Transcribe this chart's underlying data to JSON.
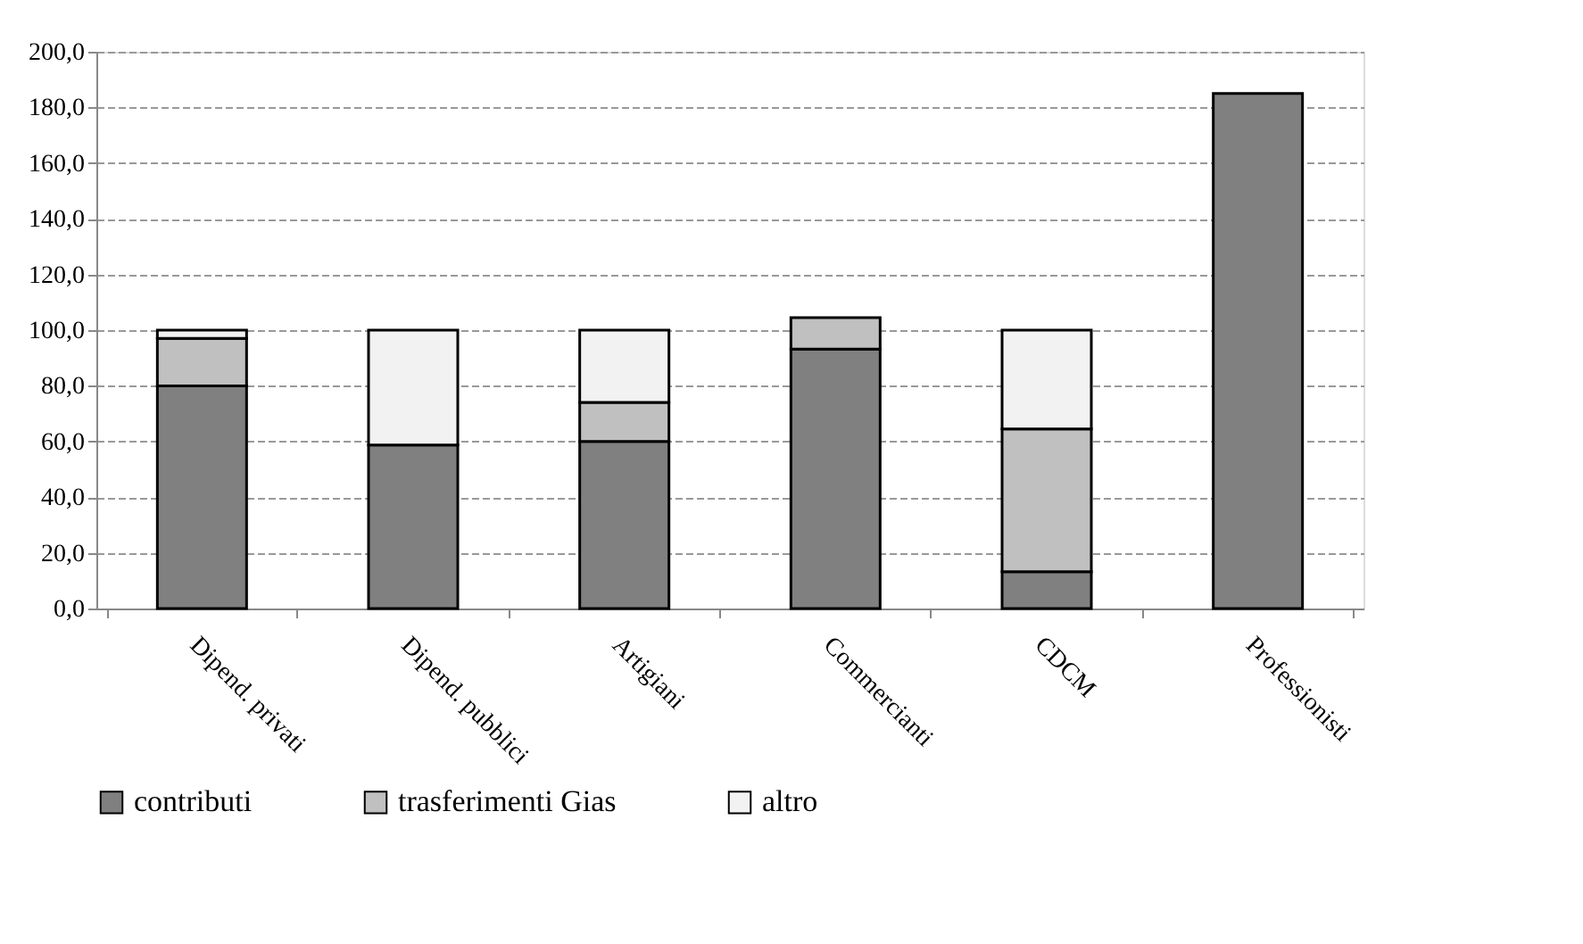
{
  "chart_data": {
    "type": "bar",
    "stacked": true,
    "categories": [
      "Dipend. privati",
      "Dipend. pubblici",
      "Artigiani",
      "Commercianti",
      "CDCM",
      "Professionisti"
    ],
    "series": [
      {
        "name": "contributi",
        "color": "#808080",
        "values": [
          80,
          58.7,
          60,
          93.2,
          13.2,
          185
        ]
      },
      {
        "name": "trasferimenti Gias",
        "color": "#c0c0c0",
        "values": [
          17,
          null,
          14,
          11.3,
          51.3,
          null
        ]
      },
      {
        "name": "altro",
        "color": "#f2f2f2",
        "values": [
          3,
          41.3,
          26,
          null,
          35.5,
          null
        ]
      }
    ],
    "ylim": [
      0,
      200
    ],
    "yticks": [
      {
        "value": 0,
        "label": "0,0"
      },
      {
        "value": 20,
        "label": "20,0"
      },
      {
        "value": 40,
        "label": "40,0"
      },
      {
        "value": 60,
        "label": "60,0"
      },
      {
        "value": 80,
        "label": "80,0"
      },
      {
        "value": 100,
        "label": "100,0"
      },
      {
        "value": 120,
        "label": "120,0"
      },
      {
        "value": 140,
        "label": "140,0"
      },
      {
        "value": 160,
        "label": "160,0"
      },
      {
        "value": 180,
        "label": "180,0"
      },
      {
        "value": 200,
        "label": "200,0"
      }
    ],
    "grid": "y",
    "legend": "bottom"
  }
}
